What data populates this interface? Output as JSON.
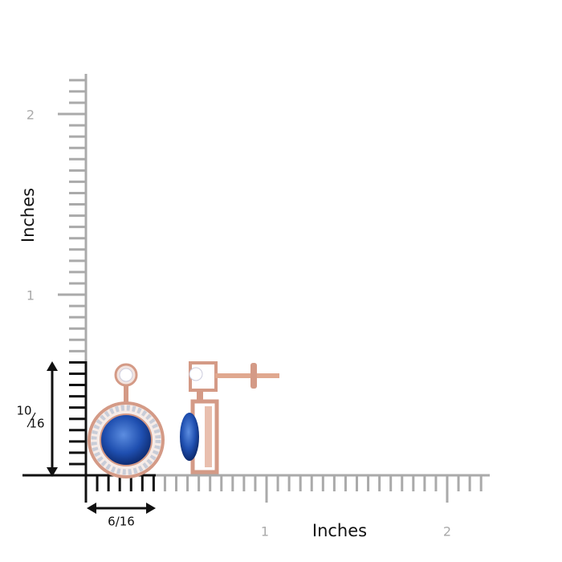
{
  "y_axis": {
    "label": "Inches",
    "ticks": [
      "2",
      "1"
    ]
  },
  "x_axis": {
    "label": "Inches",
    "ticks": [
      "1",
      "2"
    ]
  },
  "height_dimension": {
    "numerator": "10",
    "denominator": "16"
  },
  "width_dimension": "6/16"
}
